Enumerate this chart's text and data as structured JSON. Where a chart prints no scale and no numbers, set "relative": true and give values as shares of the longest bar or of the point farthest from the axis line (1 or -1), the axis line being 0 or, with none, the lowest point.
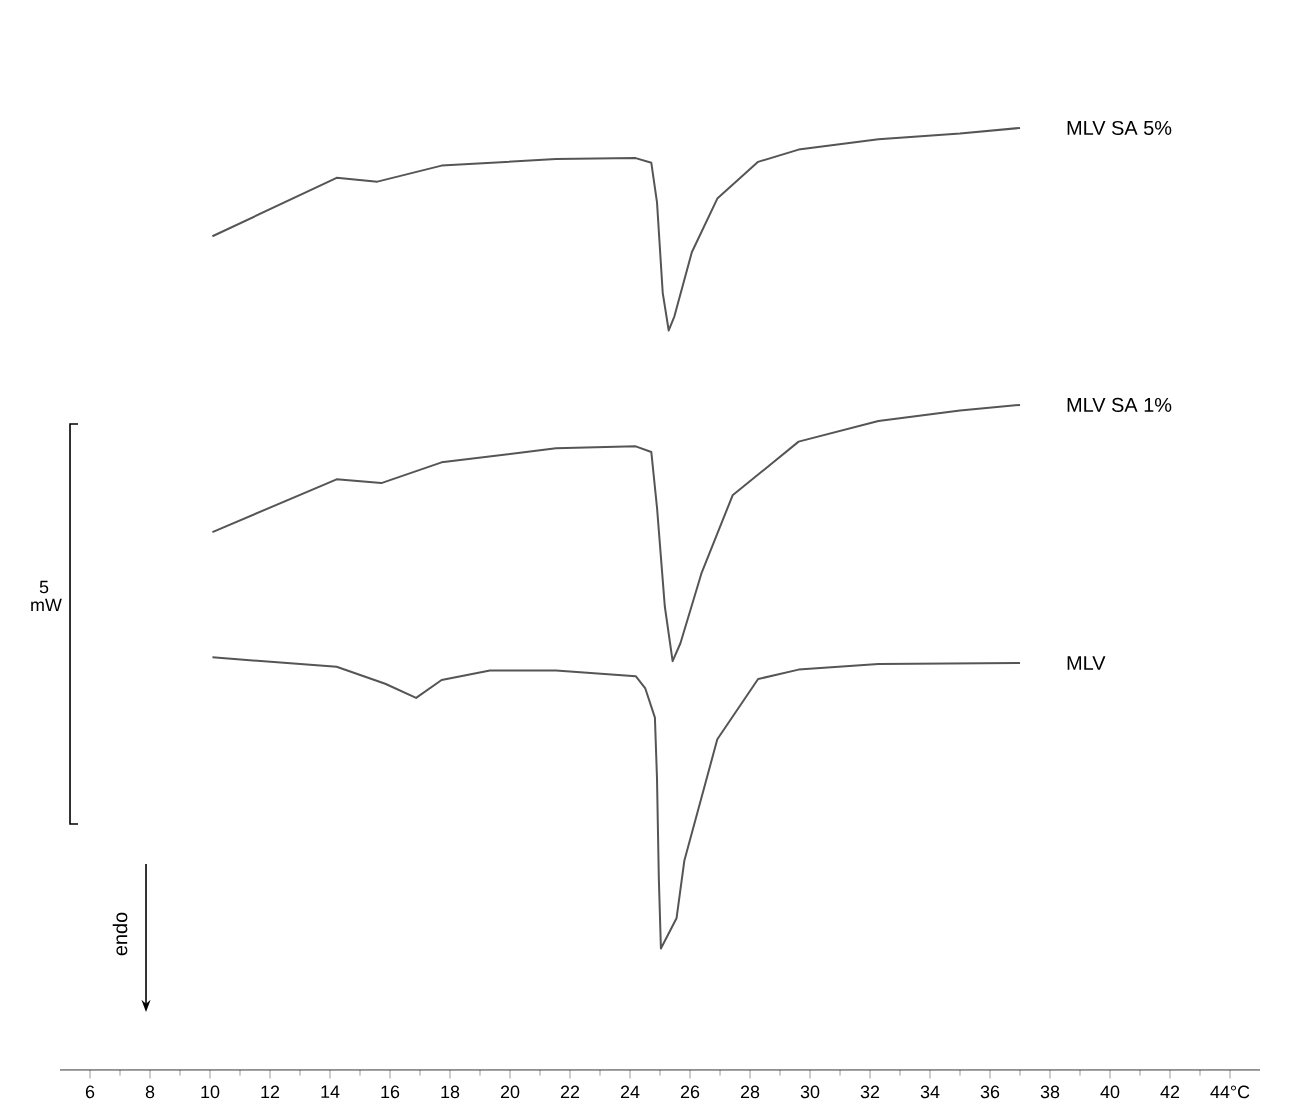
{
  "chart_data": {
    "type": "line",
    "relative": true,
    "marker": "none",
    "line_style": "solid",
    "grid": false,
    "xlim": [
      5,
      45
    ],
    "xticks": [
      6,
      8,
      10,
      12,
      14,
      16,
      18,
      20,
      22,
      24,
      26,
      28,
      30,
      32,
      34,
      36,
      38,
      40,
      42,
      {
        "value": 44,
        "label": "44°C"
      }
    ],
    "annotations": [
      "5 mW",
      "endo"
    ],
    "series": [
      {
        "name": "MLV SA 5%",
        "color": "#555555",
        "x": [
          10.08,
          14.22,
          15.58,
          17.72,
          21.53,
          24.19,
          24.71,
          24.9,
          25.09,
          25.29,
          25.48,
          26.06,
          26.91,
          28.27,
          29.62,
          32.28,
          35.0,
          37.0
        ],
        "values": [
          0.885,
          0.947,
          0.943,
          0.96,
          0.967,
          0.968,
          0.963,
          0.921,
          0.825,
          0.785,
          0.8,
          0.868,
          0.925,
          0.964,
          0.977,
          0.988,
          0.994,
          1.0
        ]
      },
      {
        "name": "MLV SA 1%",
        "color": "#555555",
        "x": [
          10.08,
          14.22,
          15.71,
          17.72,
          21.53,
          24.19,
          24.71,
          24.9,
          25.16,
          25.42,
          25.68,
          26.39,
          27.42,
          29.62,
          32.28,
          35.0,
          37.0
        ],
        "values": [
          0.571,
          0.627,
          0.623,
          0.645,
          0.66,
          0.662,
          0.656,
          0.597,
          0.492,
          0.434,
          0.453,
          0.528,
          0.61,
          0.667,
          0.689,
          0.7,
          0.706
        ]
      },
      {
        "name": "MLV",
        "color": "#555555",
        "x": [
          10.08,
          14.22,
          15.84,
          16.87,
          17.72,
          19.33,
          21.53,
          24.19,
          24.51,
          24.83,
          24.9,
          24.96,
          25.03,
          25.55,
          25.81,
          26.91,
          28.27,
          29.62,
          32.28,
          37.0
        ],
        "values": [
          0.438,
          0.428,
          0.41,
          0.395,
          0.414,
          0.424,
          0.424,
          0.418,
          0.405,
          0.374,
          0.309,
          0.204,
          0.129,
          0.161,
          0.222,
          0.351,
          0.415,
          0.425,
          0.431,
          0.432
        ]
      }
    ]
  }
}
